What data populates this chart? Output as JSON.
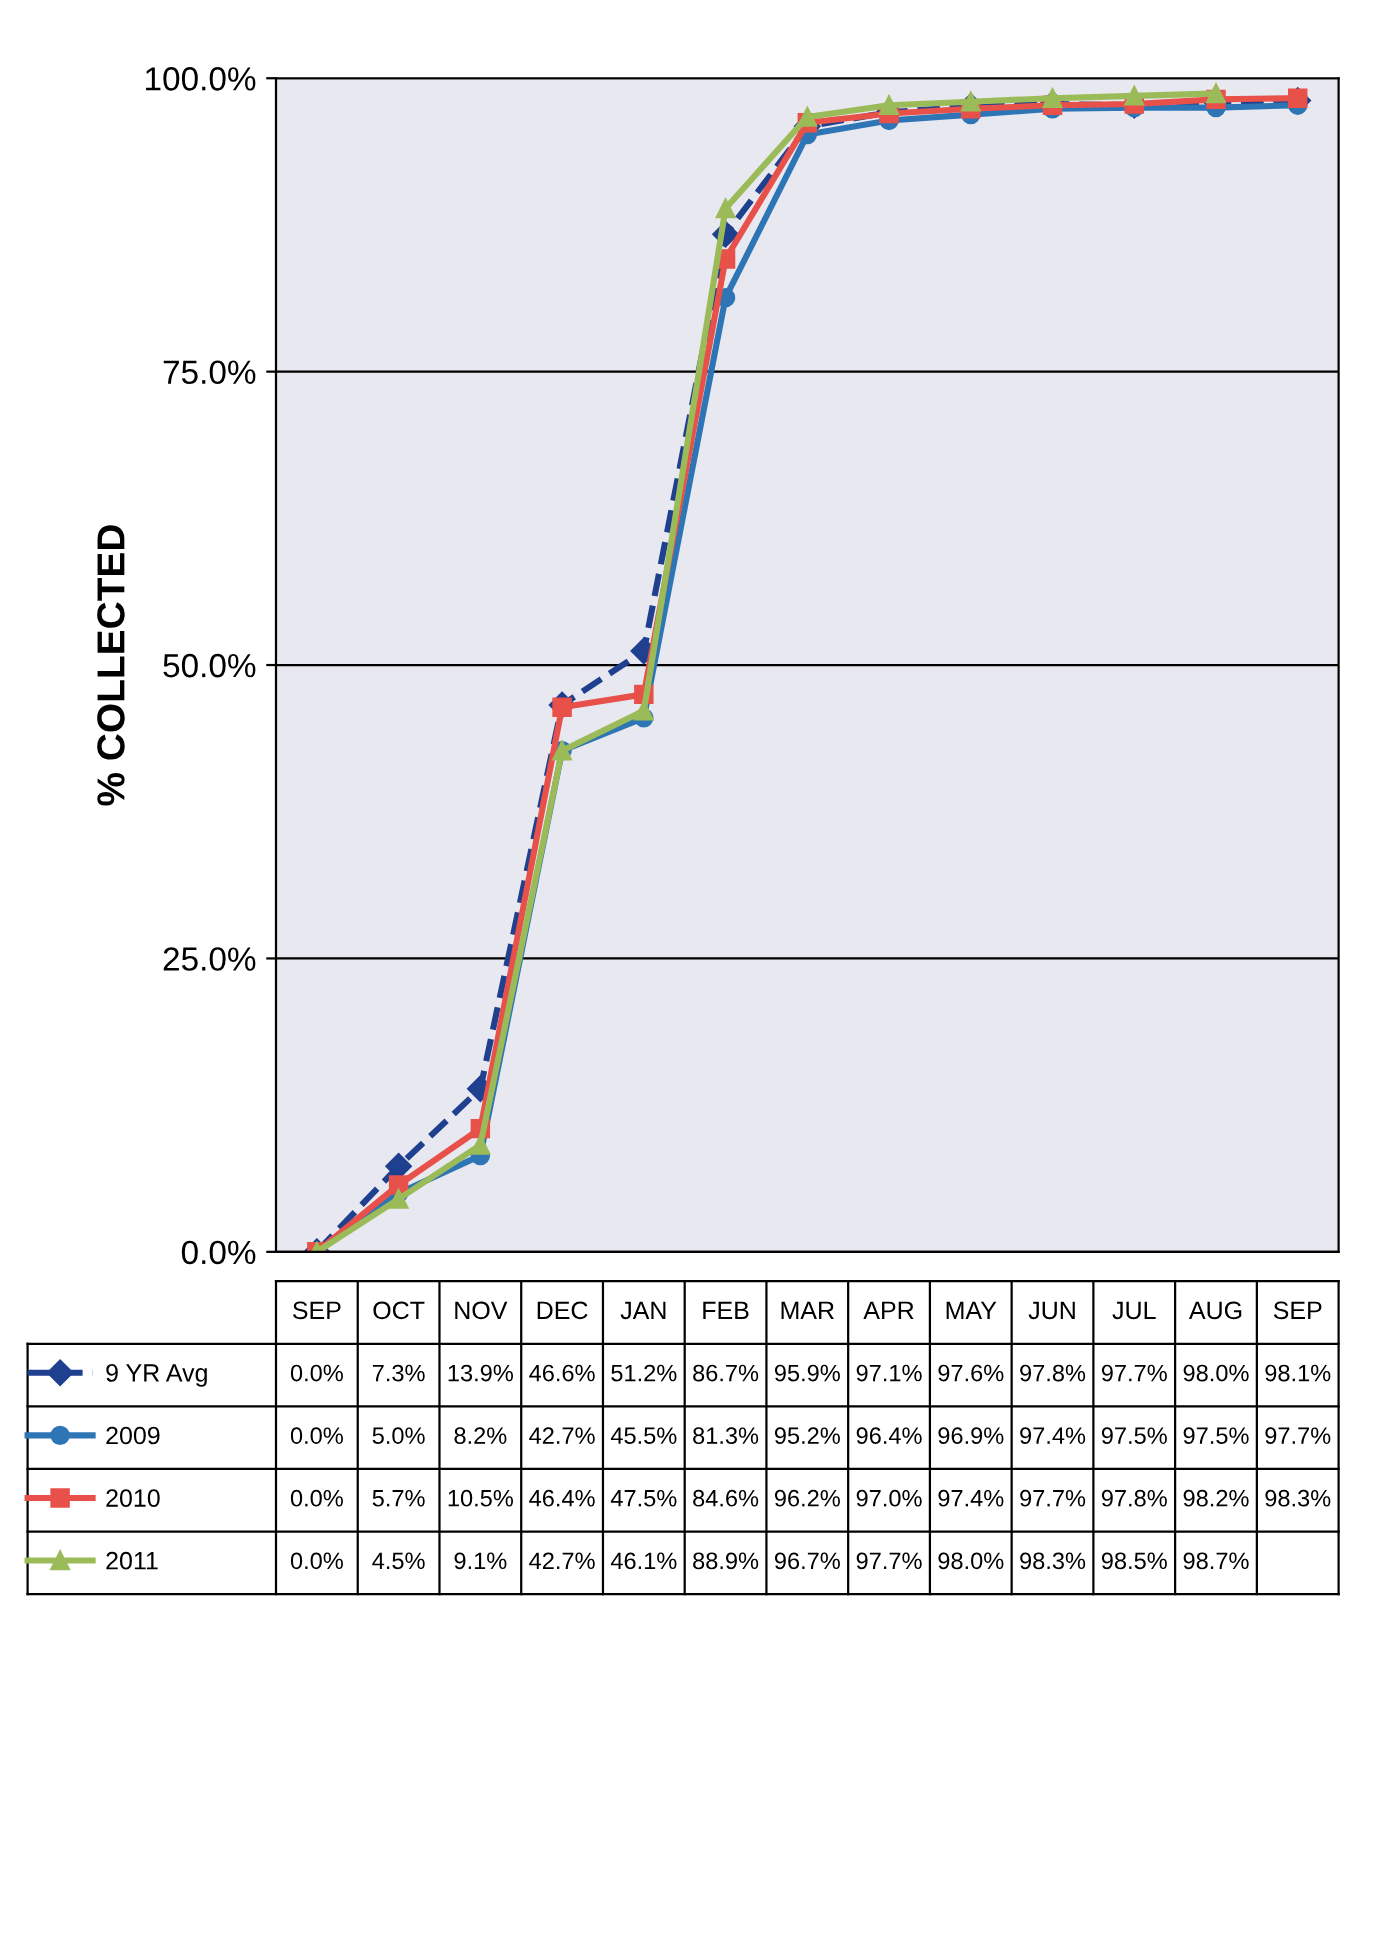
{
  "chart_data": {
    "type": "line",
    "ylabel": "% COLLECTED",
    "categories": [
      "SEP",
      "OCT",
      "NOV",
      "DEC",
      "JAN",
      "FEB",
      "MAR",
      "APR",
      "MAY",
      "JUN",
      "JUL",
      "AUG",
      "SEP"
    ],
    "series": [
      {
        "name": "9 YR Avg",
        "color": "#1f3f8f",
        "marker": "diamond",
        "line_style": "dashed",
        "values": [
          0.0,
          7.3,
          13.9,
          46.6,
          51.2,
          86.7,
          95.9,
          97.1,
          97.6,
          97.8,
          97.7,
          98.0,
          98.1
        ],
        "value_labels": [
          "0.0%",
          "7.3%",
          "13.9%",
          "46.6%",
          "51.2%",
          "86.7%",
          "95.9%",
          "97.1%",
          "97.6%",
          "97.8%",
          "97.7%",
          "98.0%",
          "98.1%"
        ]
      },
      {
        "name": "2009",
        "color": "#2e75b6",
        "marker": "circle",
        "line_style": "solid",
        "values": [
          0.0,
          5.0,
          8.2,
          42.7,
          45.5,
          81.3,
          95.2,
          96.4,
          96.9,
          97.4,
          97.5,
          97.5,
          97.7
        ],
        "value_labels": [
          "0.0%",
          "5.0%",
          "8.2%",
          "42.7%",
          "45.5%",
          "81.3%",
          "95.2%",
          "96.4%",
          "96.9%",
          "97.4%",
          "97.5%",
          "97.5%",
          "97.7%"
        ]
      },
      {
        "name": "2010",
        "color": "#e8504a",
        "marker": "square",
        "line_style": "solid",
        "values": [
          0.0,
          5.7,
          10.5,
          46.4,
          47.5,
          84.6,
          96.2,
          97.0,
          97.4,
          97.7,
          97.8,
          98.2,
          98.3
        ],
        "value_labels": [
          "0.0%",
          "5.7%",
          "10.5%",
          "46.4%",
          "47.5%",
          "84.6%",
          "96.2%",
          "97.0%",
          "97.4%",
          "97.7%",
          "97.8%",
          "98.2%",
          "98.3%"
        ]
      },
      {
        "name": "2011",
        "color": "#9bbb59",
        "marker": "triangle",
        "line_style": "solid",
        "values": [
          0.0,
          4.5,
          9.1,
          42.7,
          46.1,
          88.9,
          96.7,
          97.7,
          98.0,
          98.3,
          98.5,
          98.7,
          null
        ],
        "value_labels": [
          "0.0%",
          "4.5%",
          "9.1%",
          "42.7%",
          "46.1%",
          "88.9%",
          "96.7%",
          "97.7%",
          "98.0%",
          "98.3%",
          "98.5%",
          "98.7%",
          null
        ]
      }
    ],
    "ylim": [
      0,
      100
    ],
    "yticks": [
      {
        "value": 0,
        "label": "0.0%"
      },
      {
        "value": 25,
        "label": "25.0%"
      },
      {
        "value": 50,
        "label": "50.0%"
      },
      {
        "value": 75,
        "label": "75.0%"
      },
      {
        "value": 100,
        "label": "100.0%"
      }
    ],
    "grid": "y",
    "legend": "bottom"
  }
}
